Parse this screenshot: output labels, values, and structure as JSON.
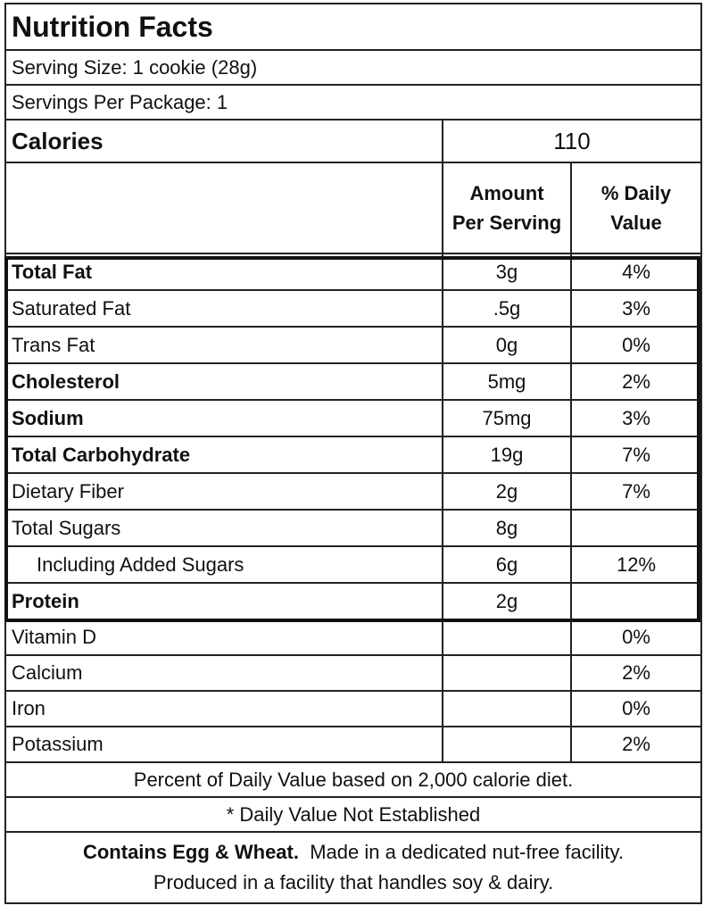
{
  "title": "Nutrition Facts",
  "serving_size": "Serving Size: 1 cookie (28g)",
  "servings_per_package": "Servings Per Package: 1",
  "calories": {
    "label": "Calories",
    "value": "110"
  },
  "headers": {
    "amount_line1": "Amount",
    "amount_line2": "Per Serving",
    "dv_line1": "% Daily",
    "dv_line2": "Value"
  },
  "nutrients": [
    {
      "name": "Total Fat",
      "amount": "3g",
      "dv": "4%"
    },
    {
      "name": "Saturated Fat",
      "amount": ".5g",
      "dv": "3%"
    },
    {
      "name": "Trans Fat",
      "amount": "0g",
      "dv": "0%"
    },
    {
      "name": "Cholesterol",
      "amount": "5mg",
      "dv": "2%"
    },
    {
      "name": "Sodium",
      "amount": "75mg",
      "dv": "3%"
    },
    {
      "name": "Total Carbohydrate",
      "amount": "19g",
      "dv": "7%"
    },
    {
      "name": "Dietary Fiber",
      "amount": "2g",
      "dv": "7%"
    },
    {
      "name": "Total Sugars",
      "amount": "8g",
      "dv": ""
    },
    {
      "name": "Including Added Sugars",
      "amount": "6g",
      "dv": "12%"
    },
    {
      "name": "Protein",
      "amount": "2g",
      "dv": ""
    }
  ],
  "vitamins": [
    {
      "name": "Vitamin D",
      "dv": "0%"
    },
    {
      "name": "Calcium",
      "dv": "2%"
    },
    {
      "name": "Iron",
      "dv": "0%"
    },
    {
      "name": "Potassium",
      "dv": "2%"
    }
  ],
  "note_daily_value": "Percent of Daily Value based on 2,000 calorie diet.",
  "note_not_established": "* Daily Value Not Established",
  "footer": {
    "allergens_bold": "Contains Egg & Wheat.",
    "line1_rest": "Made in a dedicated nut-free facility.",
    "line2": "Produced in a facility that handles soy & dairy."
  }
}
